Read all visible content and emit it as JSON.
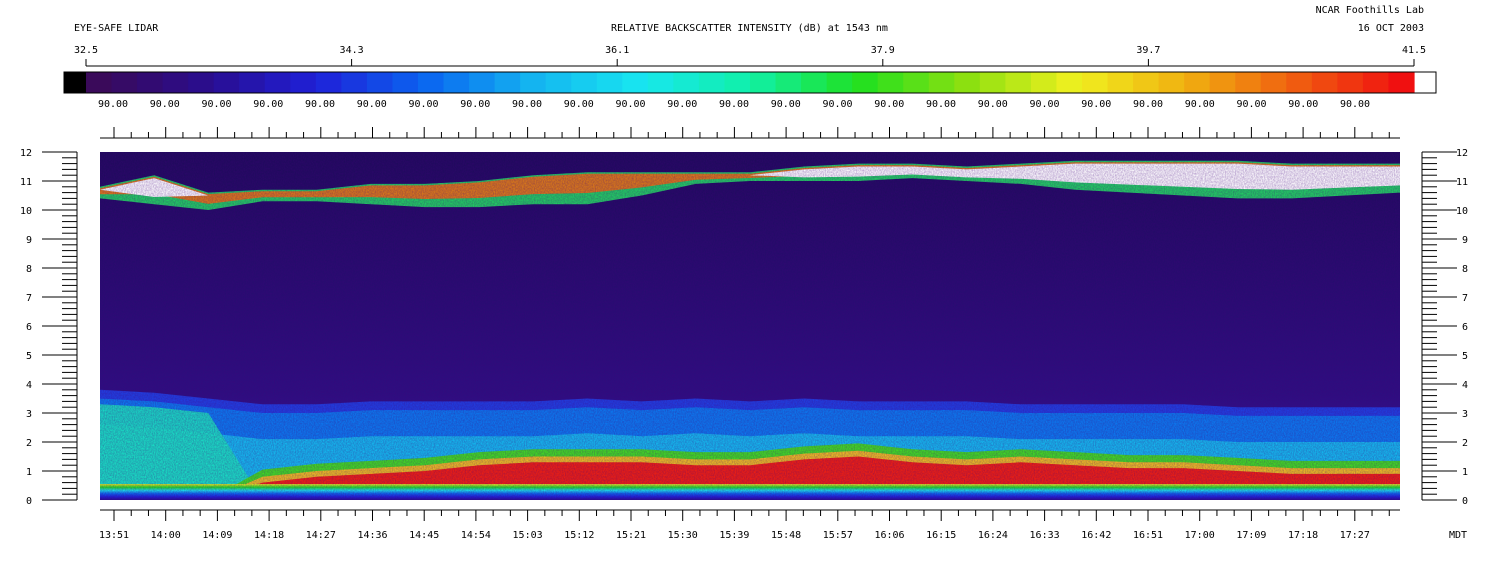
{
  "header": {
    "left_title": "EYE-SAFE LIDAR",
    "center_title": "RELATIVE BACKSCATTER INTENSITY (dB) at 1543 nm",
    "org": "NCAR Foothills Lab",
    "date": "16 OCT 2003"
  },
  "colors": {
    "scale": [
      "#000000",
      "#3a0a5a",
      "#2a0d8e",
      "#1f20d8",
      "#0a64f0",
      "#14b4f0",
      "#18e6f0",
      "#10f0a8",
      "#20e020",
      "#8ce010",
      "#f0f020",
      "#f0b010",
      "#f06010",
      "#f01010",
      "#ffffff"
    ],
    "background": "#2a0d6e"
  },
  "chart_data": {
    "type": "heatmap",
    "colorbar": {
      "ticks": [
        32.5,
        34.3,
        36.1,
        37.9,
        39.7,
        41.5
      ],
      "tick_labels": [
        "32.5",
        "34.3",
        "36.1",
        "37.9",
        "39.7",
        "41.5"
      ],
      "segment_labels": [
        "90.00",
        "90.00",
        "90.00",
        "90.00",
        "90.00",
        "90.00",
        "90.00",
        "90.00",
        "90.00",
        "90.00",
        "90.00",
        "90.00",
        "90.00",
        "90.00",
        "90.00",
        "90.00",
        "90.00",
        "90.00",
        "90.00",
        "90.00",
        "90.00",
        "90.00",
        "90.00",
        "90.00",
        "90.00"
      ],
      "range": [
        32.5,
        41.5
      ]
    },
    "y_axis": {
      "ticks": [
        "0",
        "1",
        "2",
        "3",
        "4",
        "5",
        "6",
        "7",
        "8",
        "9",
        "10",
        "11",
        "12"
      ],
      "range": [
        0,
        12
      ]
    },
    "x_axis": {
      "unit_label": "MDT",
      "tick_labels": [
        "13:51",
        "14:00",
        "14:09",
        "14:18",
        "14:27",
        "14:36",
        "14:45",
        "14:54",
        "15:03",
        "15:12",
        "15:21",
        "15:30",
        "15:39",
        "15:48",
        "15:57",
        "16:06",
        "16:15",
        "16:24",
        "16:33",
        "16:42",
        "16:51",
        "17:00",
        "17:09",
        "17:18",
        "17:27"
      ]
    },
    "features": {
      "boundary_layer_top": [
        3.5,
        3.4,
        3.2,
        3.0,
        3.0,
        3.1,
        3.1,
        3.1,
        3.1,
        3.2,
        3.1,
        3.2,
        3.1,
        3.2,
        3.1,
        3.1,
        3.1,
        3.0,
        3.0,
        3.0,
        3.0,
        2.9,
        2.9,
        2.9,
        2.9
      ],
      "red_layer_top": [
        0,
        0,
        0,
        0.6,
        0.8,
        0.9,
        1.0,
        1.2,
        1.3,
        1.3,
        1.3,
        1.2,
        1.2,
        1.4,
        1.5,
        1.3,
        1.2,
        1.3,
        1.2,
        1.1,
        1.1,
        1.0,
        0.9,
        0.9,
        0.9
      ],
      "cloud_base": [
        10.4,
        10.2,
        10.0,
        10.3,
        10.3,
        10.2,
        10.1,
        10.1,
        10.2,
        10.2,
        10.5,
        10.9,
        11.0,
        11.0,
        11.0,
        11.1,
        11.0,
        10.9,
        10.7,
        10.6,
        10.5,
        10.4,
        10.4,
        10.5,
        10.6
      ],
      "cloud_top": [
        10.8,
        11.2,
        10.6,
        10.7,
        10.7,
        10.9,
        10.9,
        11.0,
        11.2,
        11.3,
        11.3,
        11.3,
        11.3,
        11.5,
        11.6,
        11.6,
        11.5,
        11.6,
        11.7,
        11.7,
        11.7,
        11.7,
        11.6,
        11.6,
        11.6
      ]
    }
  }
}
